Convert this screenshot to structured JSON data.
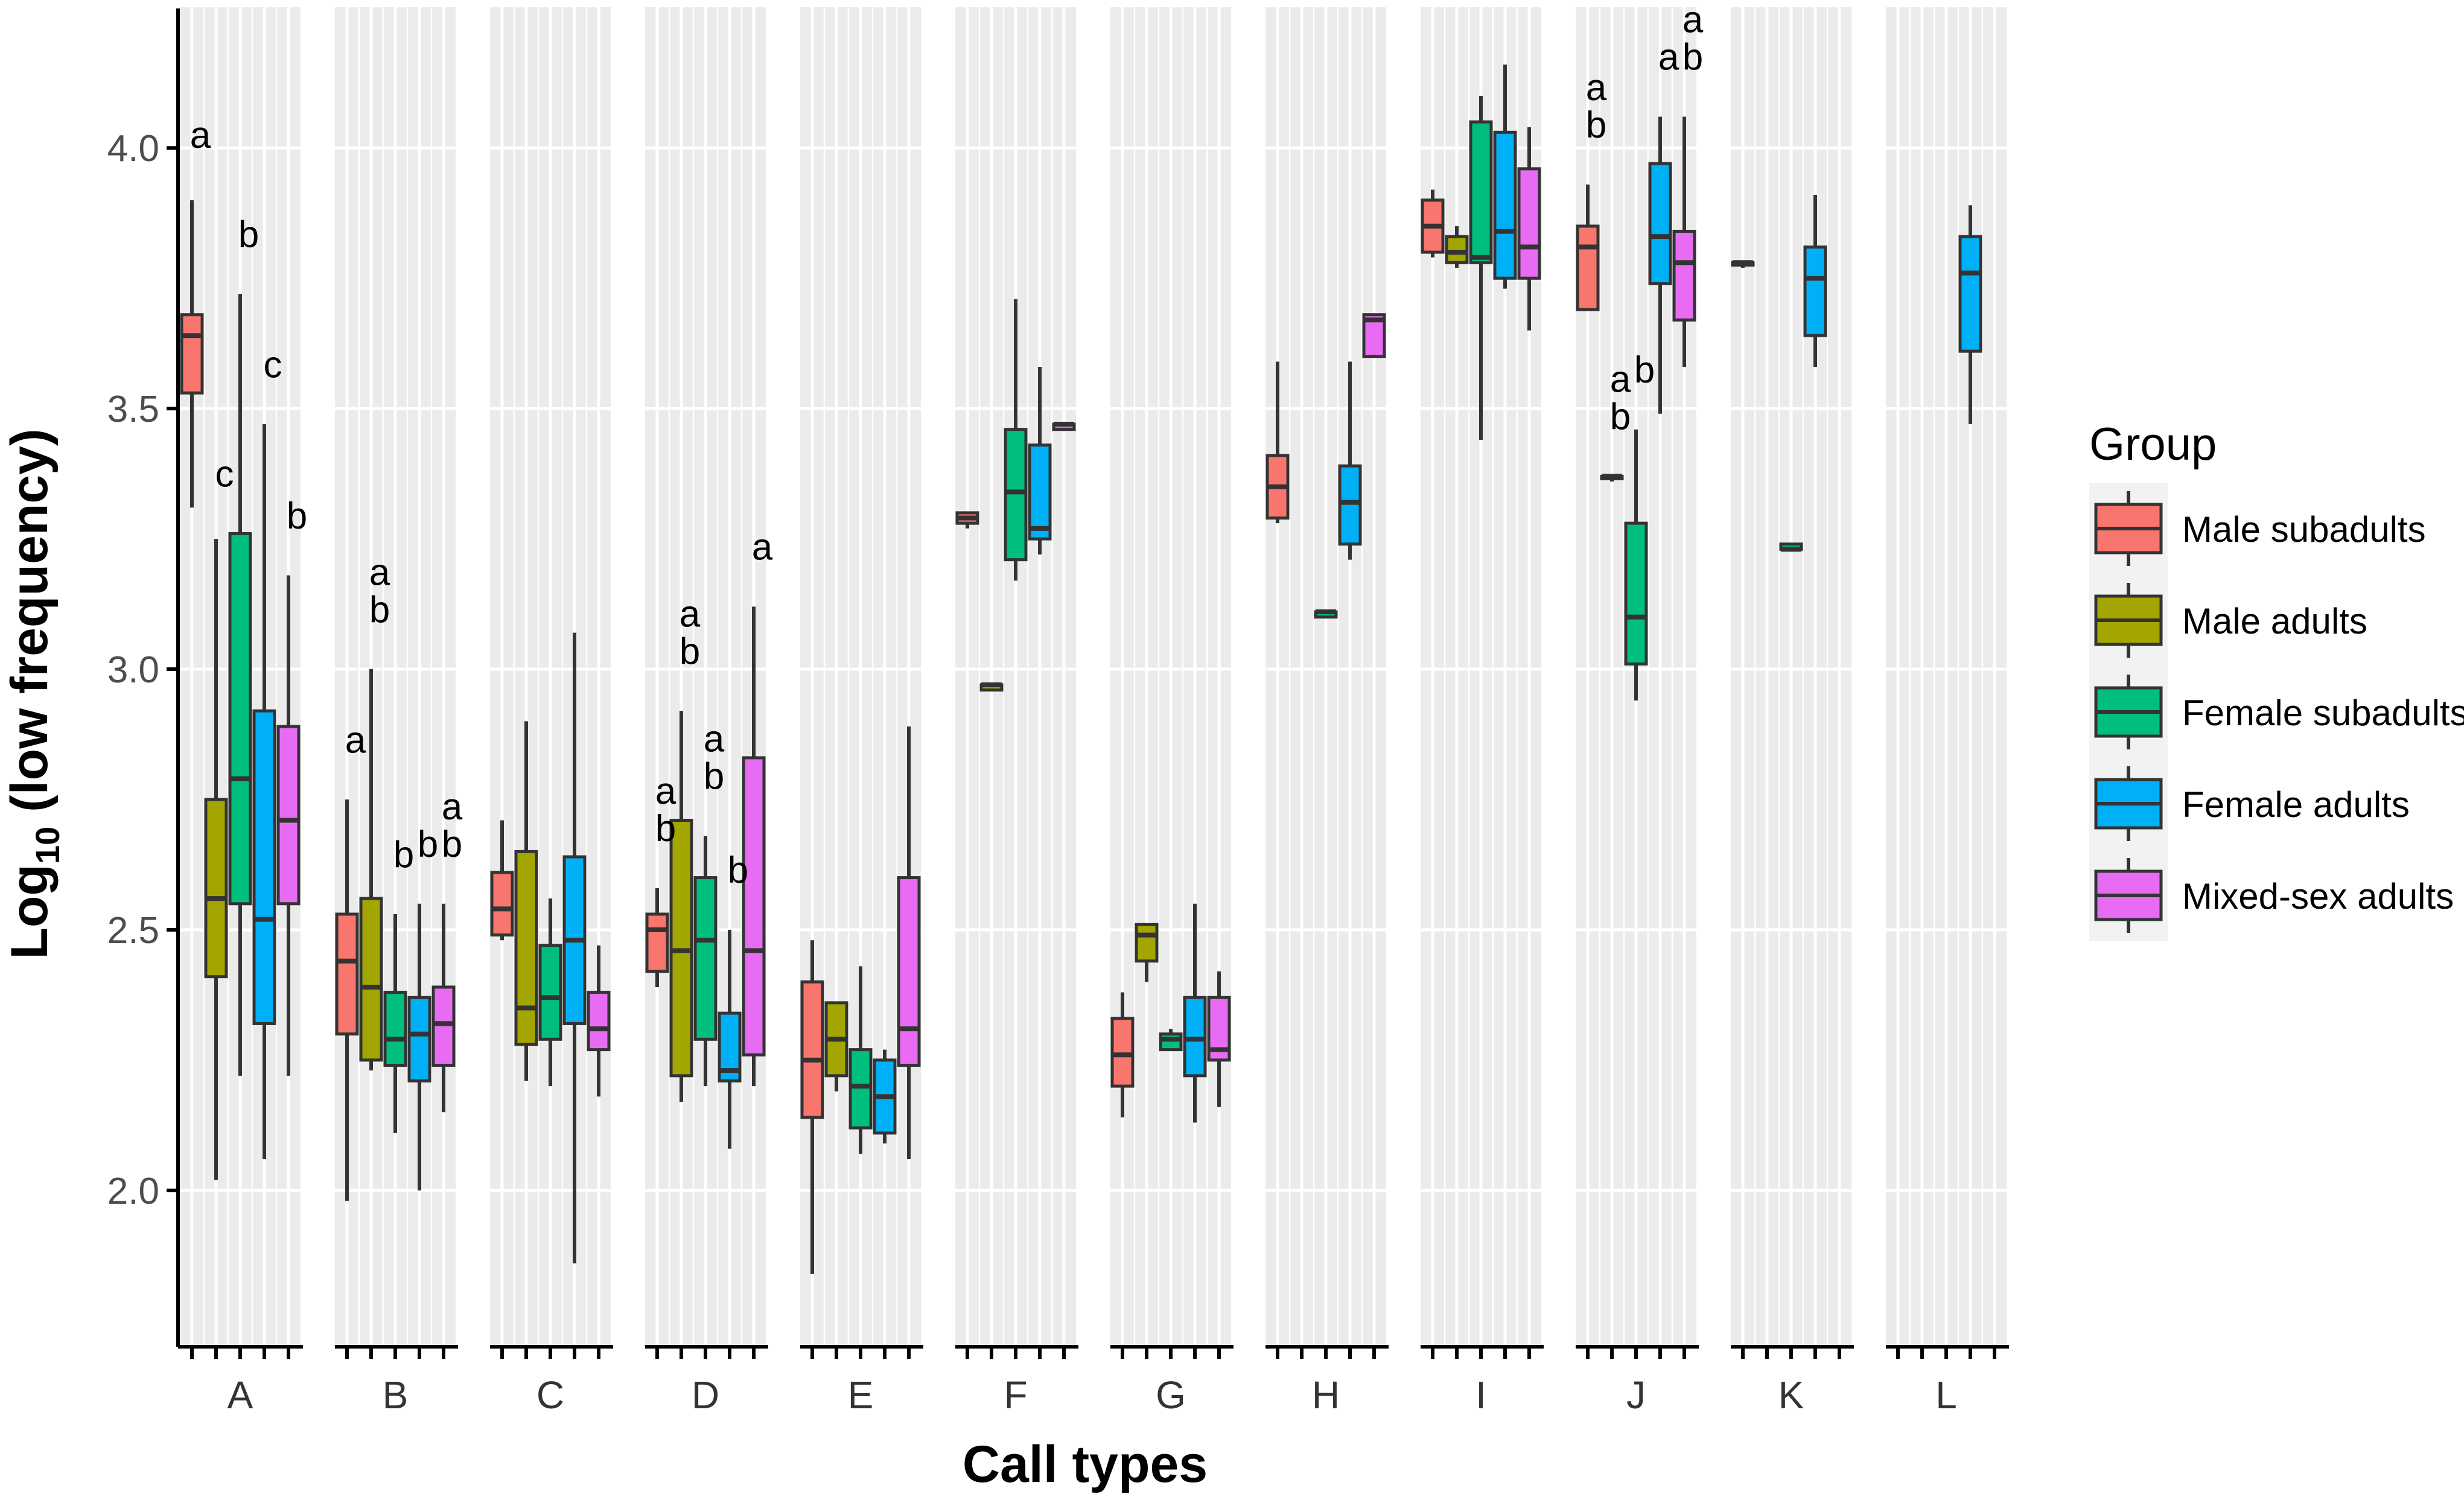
{
  "chart_data": {
    "type": "boxplot",
    "xlabel": "Call types",
    "ylabel_prefix": "Log",
    "ylabel_sub": "10",
    "ylabel_suffix": " (low frequency)",
    "ylim": [
      1.7,
      4.27
    ],
    "yticks": [
      2.0,
      2.5,
      3.0,
      3.5,
      4.0
    ],
    "ytick_labels": [
      "2.0",
      "2.5",
      "3.0",
      "3.5",
      "4.0"
    ],
    "panels": [
      "A",
      "B",
      "C",
      "D",
      "E",
      "F",
      "G",
      "H",
      "I",
      "J",
      "K",
      "L"
    ],
    "legend": {
      "title": "Group",
      "position": "right",
      "items": [
        {
          "name": "Male subadults",
          "color": "#F8766D"
        },
        {
          "name": "Male adults",
          "color": "#A3A500"
        },
        {
          "name": "Female subadults",
          "color": "#00BF7D"
        },
        {
          "name": "Female adults",
          "color": "#00B0F6"
        },
        {
          "name": "Mixed-sex adults",
          "color": "#E76BF3"
        }
      ]
    },
    "boxes": [
      {
        "panel": "A",
        "group": 0,
        "min": 3.31,
        "q1": 3.53,
        "median": 3.64,
        "q3": 3.68,
        "max": 3.9,
        "letter": "a",
        "ly": 4.0
      },
      {
        "panel": "A",
        "group": 1,
        "min": 2.02,
        "q1": 2.41,
        "median": 2.56,
        "q3": 2.75,
        "max": 3.25,
        "letter": "c",
        "ly": 3.35
      },
      {
        "panel": "A",
        "group": 2,
        "min": 2.22,
        "q1": 2.55,
        "median": 2.79,
        "q3": 3.26,
        "max": 3.72,
        "letter": "b",
        "ly": 3.81
      },
      {
        "panel": "A",
        "group": 3,
        "min": 2.06,
        "q1": 2.32,
        "median": 2.52,
        "q3": 2.92,
        "max": 3.47,
        "letter": "c",
        "ly": 3.56
      },
      {
        "panel": "A",
        "group": 4,
        "min": 2.22,
        "q1": 2.55,
        "median": 2.71,
        "q3": 2.89,
        "max": 3.18,
        "letter": "b",
        "ly": 3.27
      },
      {
        "panel": "B",
        "group": 0,
        "min": 1.98,
        "q1": 2.3,
        "median": 2.44,
        "q3": 2.53,
        "max": 2.75,
        "letter": "a",
        "ly": 2.84
      },
      {
        "panel": "B",
        "group": 1,
        "min": 2.23,
        "q1": 2.25,
        "median": 2.39,
        "q3": 2.56,
        "max": 3.0,
        "letter": "ab",
        "ly": 3.09
      },
      {
        "panel": "B",
        "group": 2,
        "min": 2.11,
        "q1": 2.24,
        "median": 2.29,
        "q3": 2.38,
        "max": 2.53,
        "letter": "b",
        "ly": 2.62
      },
      {
        "panel": "B",
        "group": 3,
        "min": 2.0,
        "q1": 2.21,
        "median": 2.3,
        "q3": 2.37,
        "max": 2.55,
        "letter": "b",
        "ly": 2.64
      },
      {
        "panel": "B",
        "group": 4,
        "min": 2.15,
        "q1": 2.24,
        "median": 2.32,
        "q3": 2.39,
        "max": 2.55,
        "letter": "ab",
        "ly": 2.64
      },
      {
        "panel": "C",
        "group": 0,
        "min": 2.48,
        "q1": 2.49,
        "median": 2.54,
        "q3": 2.61,
        "max": 2.71
      },
      {
        "panel": "C",
        "group": 1,
        "min": 2.21,
        "q1": 2.28,
        "median": 2.35,
        "q3": 2.65,
        "max": 2.9
      },
      {
        "panel": "C",
        "group": 2,
        "min": 2.2,
        "q1": 2.29,
        "median": 2.37,
        "q3": 2.47,
        "max": 2.56
      },
      {
        "panel": "C",
        "group": 3,
        "min": 1.86,
        "q1": 2.32,
        "median": 2.48,
        "q3": 2.64,
        "max": 3.07
      },
      {
        "panel": "C",
        "group": 4,
        "min": 2.18,
        "q1": 2.27,
        "median": 2.31,
        "q3": 2.38,
        "max": 2.47
      },
      {
        "panel": "D",
        "group": 0,
        "min": 2.39,
        "q1": 2.42,
        "median": 2.5,
        "q3": 2.53,
        "max": 2.58,
        "letter": "ab",
        "ly": 2.67
      },
      {
        "panel": "D",
        "group": 1,
        "min": 2.17,
        "q1": 2.22,
        "median": 2.46,
        "q3": 2.71,
        "max": 2.92,
        "letter": "ab",
        "ly": 3.01
      },
      {
        "panel": "D",
        "group": 2,
        "min": 2.2,
        "q1": 2.29,
        "median": 2.48,
        "q3": 2.6,
        "max": 2.68,
        "letter": "ab",
        "ly": 2.77
      },
      {
        "panel": "D",
        "group": 3,
        "min": 2.08,
        "q1": 2.21,
        "median": 2.23,
        "q3": 2.34,
        "max": 2.5,
        "letter": "b",
        "ly": 2.59
      },
      {
        "panel": "D",
        "group": 4,
        "min": 2.2,
        "q1": 2.26,
        "median": 2.46,
        "q3": 2.83,
        "max": 3.12,
        "letter": "a",
        "ly": 3.21
      },
      {
        "panel": "E",
        "group": 0,
        "min": 1.84,
        "q1": 2.14,
        "median": 2.25,
        "q3": 2.4,
        "max": 2.48
      },
      {
        "panel": "E",
        "group": 1,
        "min": 2.19,
        "q1": 2.22,
        "median": 2.29,
        "q3": 2.36,
        "max": 2.36
      },
      {
        "panel": "E",
        "group": 2,
        "min": 2.07,
        "q1": 2.12,
        "median": 2.2,
        "q3": 2.27,
        "max": 2.43
      },
      {
        "panel": "E",
        "group": 3,
        "min": 2.09,
        "q1": 2.11,
        "median": 2.18,
        "q3": 2.25,
        "max": 2.27
      },
      {
        "panel": "E",
        "group": 4,
        "min": 2.06,
        "q1": 2.24,
        "median": 2.31,
        "q3": 2.6,
        "max": 2.89
      },
      {
        "panel": "F",
        "group": 0,
        "min": 3.27,
        "q1": 3.28,
        "median": 3.29,
        "q3": 3.3,
        "max": 3.3
      },
      {
        "panel": "F",
        "group": 1,
        "min": 2.96,
        "q1": 2.96,
        "median": 2.97,
        "q3": 2.97,
        "max": 2.97
      },
      {
        "panel": "F",
        "group": 2,
        "min": 3.17,
        "q1": 3.21,
        "median": 3.34,
        "q3": 3.46,
        "max": 3.71
      },
      {
        "panel": "F",
        "group": 3,
        "min": 3.22,
        "q1": 3.25,
        "median": 3.27,
        "q3": 3.43,
        "max": 3.58
      },
      {
        "panel": "F",
        "group": 4,
        "min": 3.46,
        "q1": 3.46,
        "median": 3.47,
        "q3": 3.47,
        "max": 3.47
      },
      {
        "panel": "G",
        "group": 0,
        "min": 2.14,
        "q1": 2.2,
        "median": 2.26,
        "q3": 2.33,
        "max": 2.38
      },
      {
        "panel": "G",
        "group": 1,
        "min": 2.4,
        "q1": 2.44,
        "median": 2.49,
        "q3": 2.51,
        "max": 2.51
      },
      {
        "panel": "G",
        "group": 2,
        "min": 2.27,
        "q1": 2.27,
        "median": 2.29,
        "q3": 2.3,
        "max": 2.31
      },
      {
        "panel": "G",
        "group": 3,
        "min": 2.13,
        "q1": 2.22,
        "median": 2.29,
        "q3": 2.37,
        "max": 2.55
      },
      {
        "panel": "G",
        "group": 4,
        "min": 2.16,
        "q1": 2.25,
        "median": 2.27,
        "q3": 2.37,
        "max": 2.42
      },
      {
        "panel": "H",
        "group": 0,
        "min": 3.28,
        "q1": 3.29,
        "median": 3.35,
        "q3": 3.41,
        "max": 3.59
      },
      {
        "panel": "H",
        "group": 2,
        "min": 3.1,
        "q1": 3.1,
        "median": 3.11,
        "q3": 3.11,
        "max": 3.11
      },
      {
        "panel": "H",
        "group": 3,
        "min": 3.21,
        "q1": 3.24,
        "median": 3.32,
        "q3": 3.39,
        "max": 3.59
      },
      {
        "panel": "H",
        "group": 4,
        "min": 3.6,
        "q1": 3.6,
        "median": 3.67,
        "q3": 3.68,
        "max": 3.68
      },
      {
        "panel": "I",
        "group": 0,
        "min": 3.79,
        "q1": 3.8,
        "median": 3.85,
        "q3": 3.9,
        "max": 3.92
      },
      {
        "panel": "I",
        "group": 1,
        "min": 3.77,
        "q1": 3.78,
        "median": 3.8,
        "q3": 3.83,
        "max": 3.85
      },
      {
        "panel": "I",
        "group": 2,
        "min": 3.44,
        "q1": 3.78,
        "median": 3.79,
        "q3": 4.05,
        "max": 4.1
      },
      {
        "panel": "I",
        "group": 3,
        "min": 3.73,
        "q1": 3.75,
        "median": 3.84,
        "q3": 4.03,
        "max": 4.16
      },
      {
        "panel": "I",
        "group": 4,
        "min": 3.65,
        "q1": 3.75,
        "median": 3.81,
        "q3": 3.96,
        "max": 4.04
      },
      {
        "panel": "J",
        "group": 0,
        "min": 3.69,
        "q1": 3.69,
        "median": 3.81,
        "q3": 3.85,
        "max": 3.93,
        "letter": "ab",
        "ly": 4.02
      },
      {
        "panel": "J",
        "group": 1,
        "min": 3.36,
        "q1": 3.37,
        "median": 3.37,
        "q3": 3.37,
        "max": 3.37,
        "letter": "ab",
        "ly": 3.46
      },
      {
        "panel": "J",
        "group": 2,
        "min": 2.94,
        "q1": 3.01,
        "median": 3.1,
        "q3": 3.28,
        "max": 3.46,
        "letter": "b",
        "ly": 3.55
      },
      {
        "panel": "J",
        "group": 3,
        "min": 3.49,
        "q1": 3.74,
        "median": 3.83,
        "q3": 3.97,
        "max": 4.06,
        "letter": "a",
        "ly": 4.15
      },
      {
        "panel": "J",
        "group": 4,
        "min": 3.58,
        "q1": 3.67,
        "median": 3.78,
        "q3": 3.84,
        "max": 4.06,
        "letter": "ab",
        "ly": 4.15
      },
      {
        "panel": "K",
        "group": 0,
        "min": 3.77,
        "q1": 3.78,
        "median": 3.78,
        "q3": 3.78,
        "max": 3.78
      },
      {
        "panel": "K",
        "group": 2,
        "min": 3.23,
        "q1": 3.23,
        "median": 3.23,
        "q3": 3.24,
        "max": 3.24
      },
      {
        "panel": "K",
        "group": 3,
        "min": 3.58,
        "q1": 3.64,
        "median": 3.75,
        "q3": 3.81,
        "max": 3.91
      },
      {
        "panel": "L",
        "group": 3,
        "min": 3.47,
        "q1": 3.61,
        "median": 3.76,
        "q3": 3.83,
        "max": 3.89
      }
    ]
  }
}
